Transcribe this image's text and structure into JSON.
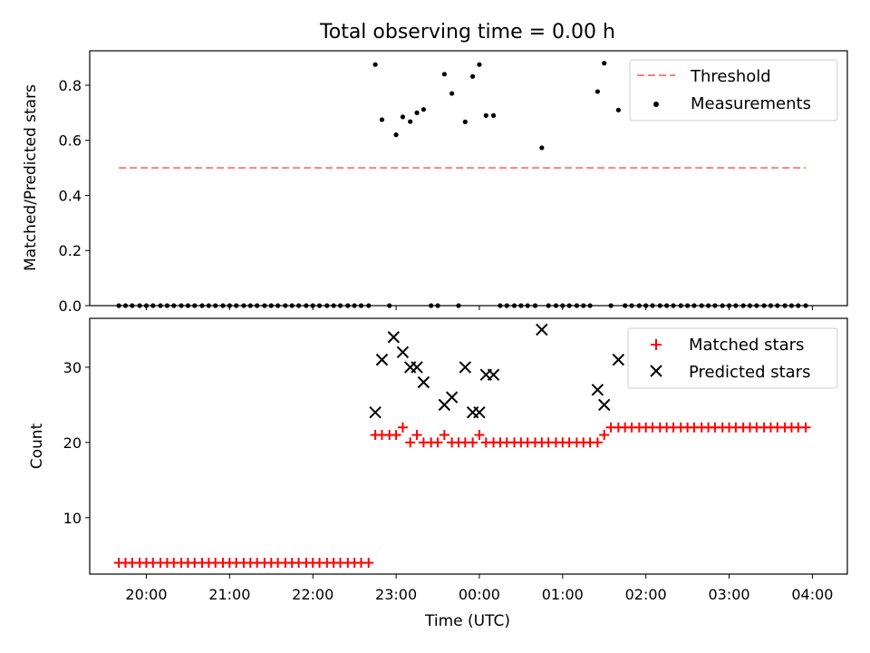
{
  "figure": {
    "title": "Total observing time = 0.00 h",
    "xlabel": "Time (UTC)"
  },
  "chart_data": [
    {
      "type": "scatter",
      "ylabel": "Matched/Predicted stars",
      "ylim": [
        0,
        0.925
      ],
      "xlim_hours": [
        19.32,
        28.42
      ],
      "ytick_labels": [
        "0.0",
        "0.2",
        "0.4",
        "0.6",
        "0.8"
      ],
      "ytick_values": [
        0,
        0.2,
        0.4,
        0.6,
        0.8
      ],
      "legend_position": "top-right",
      "threshold": {
        "name": "Threshold",
        "value": 0.5,
        "x_range_hours": [
          19.67,
          27.92
        ],
        "color": "#ff7f7f",
        "style": "dashed"
      },
      "series": [
        {
          "name": "Measurements",
          "color": "#000000",
          "marker": "dot",
          "x_hours": [
            19.67,
            19.75,
            19.83,
            19.92,
            20.0,
            20.08,
            20.17,
            20.25,
            20.33,
            20.42,
            20.5,
            20.58,
            20.67,
            20.75,
            20.83,
            20.92,
            21.0,
            21.08,
            21.17,
            21.25,
            21.33,
            21.42,
            21.5,
            21.58,
            21.67,
            21.75,
            21.83,
            21.92,
            22.0,
            22.08,
            22.17,
            22.25,
            22.33,
            22.42,
            22.5,
            22.58,
            22.67,
            22.75,
            22.83,
            22.92,
            23.0,
            23.08,
            23.17,
            23.25,
            23.33,
            23.42,
            23.5,
            23.58,
            23.67,
            23.75,
            23.83,
            23.92,
            24.0,
            24.08,
            24.17,
            24.25,
            24.33,
            24.42,
            24.5,
            24.58,
            24.67,
            24.75,
            24.83,
            24.92,
            25.0,
            25.08,
            25.17,
            25.25,
            25.33,
            25.42,
            25.5,
            25.58,
            25.67,
            25.75,
            25.83,
            25.92,
            26.0,
            26.08,
            26.17,
            26.25,
            26.33,
            26.42,
            26.5,
            26.58,
            26.67,
            26.75,
            26.83,
            26.92,
            27.0,
            27.08,
            27.17,
            27.25,
            27.33,
            27.42,
            27.5,
            27.58,
            27.67,
            27.75,
            27.83,
            27.92
          ],
          "y": [
            0,
            0,
            0,
            0,
            0,
            0,
            0,
            0,
            0,
            0,
            0,
            0,
            0,
            0,
            0,
            0,
            0,
            0,
            0,
            0,
            0,
            0,
            0,
            0,
            0,
            0,
            0,
            0,
            0,
            0,
            0,
            0,
            0,
            0,
            0,
            0,
            0,
            0.875,
            0.675,
            0,
            0.62,
            0.685,
            0.668,
            0.7,
            0.712,
            0,
            0,
            0.84,
            0.77,
            0,
            0.667,
            0.832,
            0.875,
            0.69,
            0.69,
            0,
            0,
            0,
            0,
            0,
            0,
            0.573,
            0,
            0,
            0,
            0,
            0,
            0,
            0,
            0.777,
            0.88,
            0,
            0.71,
            0,
            0,
            0,
            0,
            0,
            0,
            0,
            0,
            0,
            0,
            0,
            0,
            0,
            0,
            0,
            0,
            0,
            0,
            0,
            0,
            0,
            0,
            0,
            0,
            0,
            0,
            0
          ]
        }
      ]
    },
    {
      "type": "scatter",
      "ylabel": "Count",
      "ylim": [
        2.5,
        36.5
      ],
      "xlim_hours": [
        19.32,
        28.42
      ],
      "ytick_labels": [
        "10",
        "20",
        "30"
      ],
      "ytick_values": [
        10,
        20,
        30
      ],
      "xtick_labels": [
        "20:00",
        "21:00",
        "22:00",
        "23:00",
        "00:00",
        "01:00",
        "02:00",
        "03:00",
        "04:00"
      ],
      "xtick_values_hours": [
        20,
        21,
        22,
        23,
        24,
        25,
        26,
        27,
        28
      ],
      "legend_position": "top-right",
      "series": [
        {
          "name": "Matched stars",
          "color": "#ff0000",
          "marker": "plus",
          "x_hours": [
            19.67,
            19.75,
            19.83,
            19.92,
            20.0,
            20.08,
            20.17,
            20.25,
            20.33,
            20.42,
            20.5,
            20.58,
            20.67,
            20.75,
            20.83,
            20.92,
            21.0,
            21.08,
            21.17,
            21.25,
            21.33,
            21.42,
            21.5,
            21.58,
            21.67,
            21.75,
            21.83,
            21.92,
            22.0,
            22.08,
            22.17,
            22.25,
            22.33,
            22.42,
            22.5,
            22.58,
            22.67,
            22.75,
            22.83,
            22.92,
            23.0,
            23.08,
            23.17,
            23.25,
            23.33,
            23.42,
            23.5,
            23.58,
            23.67,
            23.75,
            23.83,
            23.92,
            24.0,
            24.08,
            24.17,
            24.25,
            24.33,
            24.42,
            24.5,
            24.58,
            24.67,
            24.75,
            24.83,
            24.92,
            25.0,
            25.08,
            25.17,
            25.25,
            25.33,
            25.42,
            25.5,
            25.58,
            25.67,
            25.75,
            25.83,
            25.92,
            26.0,
            26.08,
            26.17,
            26.25,
            26.33,
            26.42,
            26.5,
            26.58,
            26.67,
            26.75,
            26.83,
            26.92,
            27.0,
            27.08,
            27.17,
            27.25,
            27.33,
            27.42,
            27.5,
            27.58,
            27.67,
            27.75,
            27.83,
            27.92
          ],
          "y": [
            4,
            4,
            4,
            4,
            4,
            4,
            4,
            4,
            4,
            4,
            4,
            4,
            4,
            4,
            4,
            4,
            4,
            4,
            4,
            4,
            4,
            4,
            4,
            4,
            4,
            4,
            4,
            4,
            4,
            4,
            4,
            4,
            4,
            4,
            4,
            4,
            4,
            21,
            21,
            21,
            21,
            22,
            20,
            21,
            20,
            20,
            20,
            21,
            20,
            20,
            20,
            20,
            21,
            20,
            20,
            20,
            20,
            20,
            20,
            20,
            20,
            20,
            20,
            20,
            20,
            20,
            20,
            20,
            20,
            20,
            21,
            22,
            22,
            22,
            22,
            22,
            22,
            22,
            22,
            22,
            22,
            22,
            22,
            22,
            22,
            22,
            22,
            22,
            22,
            22,
            22,
            22,
            22,
            22,
            22,
            22,
            22,
            22,
            22,
            22
          ]
        },
        {
          "name": "Predicted stars",
          "color": "#000000",
          "marker": "x",
          "x_hours": [
            22.75,
            22.83,
            22.97,
            23.08,
            23.17,
            23.25,
            23.33,
            23.58,
            23.67,
            23.83,
            23.92,
            24.0,
            24.08,
            24.17,
            24.75,
            25.42,
            25.5,
            25.67
          ],
          "y": [
            24,
            31,
            34,
            32,
            30,
            30,
            28,
            25,
            26,
            30,
            24,
            24,
            29,
            29,
            35,
            27,
            25,
            31
          ]
        }
      ]
    }
  ]
}
